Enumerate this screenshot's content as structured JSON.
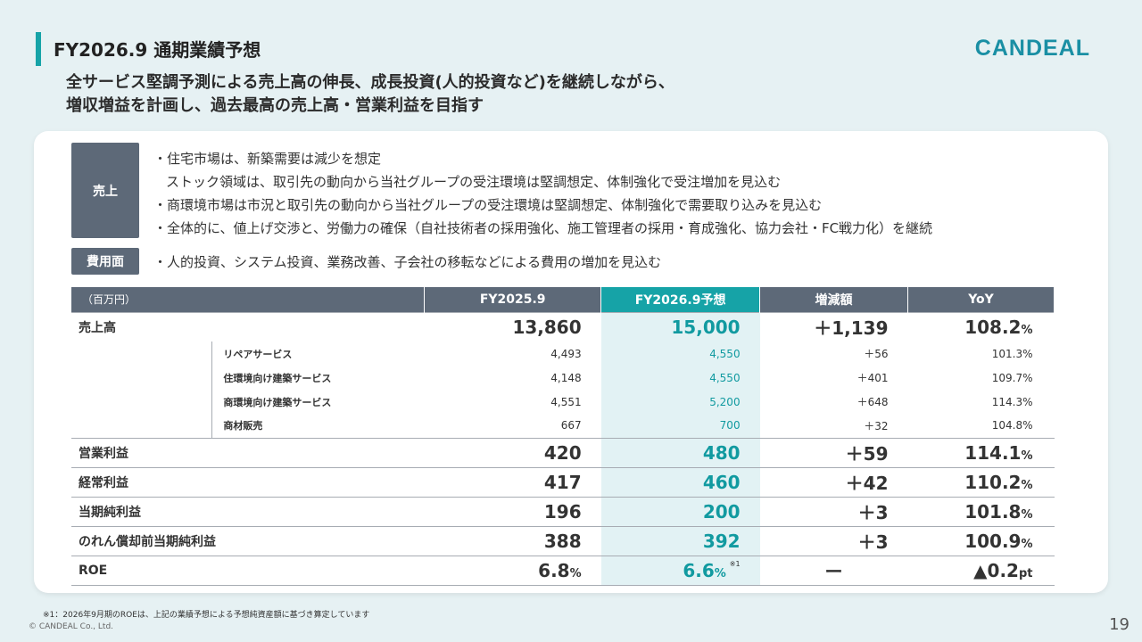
{
  "header": {
    "title": "FY2026.9 通期業績予想",
    "logo": "CANDEAL",
    "headline_line1": "全サービス堅調予測による売上高の伸長、成長投資(人的投資など)を継続しながら、",
    "headline_line2": "増収増益を計画し、過去最高の売上高・営業利益を目指す"
  },
  "sales_tag": "売上",
  "sales_bullets": [
    "・住宅市場は、新築需要は減少を想定",
    "ストック領域は、取引先の動向から当社グループの受注環境は堅調想定、体制強化で受注増加を見込む",
    "・商環境市場は市況と取引先の動向から当社グループの受注環境は堅調想定、体制強化で需要取り込みを見込む",
    "・全体的に、値上げ交渉と、労働力の確保（自社技術者の採用強化、施工管理者の採用・育成強化、協力会社・FC戦力化）を継続"
  ],
  "cost_tag": "費用面",
  "cost_bullet": "・人的投資、システム投資、業務改善、子会社の移転などによる費用の増加を見込む",
  "table": {
    "unit": "（百万円）",
    "headers": [
      "FY2025.9",
      "FY2026.9予想",
      "増減額",
      "YoY"
    ],
    "revenue": {
      "label": "売上高",
      "fy2025": "13,860",
      "fy2026": "15,000",
      "diff": "＋1,139",
      "yoy": "108.2",
      "yoy_unit": "%"
    },
    "subs": [
      {
        "label": "リペアサービス",
        "fy2025": "4,493",
        "fy2026": "4,550",
        "diff": "＋56",
        "yoy": "101.3%"
      },
      {
        "label": "住環境向け建築サービス",
        "fy2025": "4,148",
        "fy2026": "4,550",
        "diff": "＋401",
        "yoy": "109.7%"
      },
      {
        "label": "商環境向け建築サービス",
        "fy2025": "4,551",
        "fy2026": "5,200",
        "diff": "＋648",
        "yoy": "114.3%"
      },
      {
        "label": "商材販売",
        "fy2025": "667",
        "fy2026": "700",
        "diff": "＋32",
        "yoy": "104.8%"
      }
    ],
    "rows": [
      {
        "label": "営業利益",
        "fy2025": "420",
        "fy2026": "480",
        "diff": "＋59",
        "yoy": "114.1",
        "yoy_unit": "%"
      },
      {
        "label": "経常利益",
        "fy2025": "417",
        "fy2026": "460",
        "diff": "＋42",
        "yoy": "110.2",
        "yoy_unit": "%"
      },
      {
        "label": "当期純利益",
        "fy2025": "196",
        "fy2026": "200",
        "diff": "＋3",
        "yoy": "101.8",
        "yoy_unit": "%"
      },
      {
        "label": "のれん償却前当期純利益",
        "fy2025": "388",
        "fy2026": "392",
        "diff": "＋3",
        "yoy": "100.9",
        "yoy_unit": "%"
      }
    ],
    "roe": {
      "label": "ROE",
      "fy2025": "6.8",
      "fy2025_unit": "%",
      "fy2026": "6.6",
      "fy2026_unit": "%",
      "fy2026_note": "※1",
      "diff": "ー",
      "yoy": "▲0.2",
      "yoy_unit": "pt"
    }
  },
  "footnote": "※1：2026年9月期のROEは、上記の業績予想による予想純資産額に基づき算定しています",
  "copyright": "© CANDEAL Co., Ltd.",
  "page_number": "19"
}
